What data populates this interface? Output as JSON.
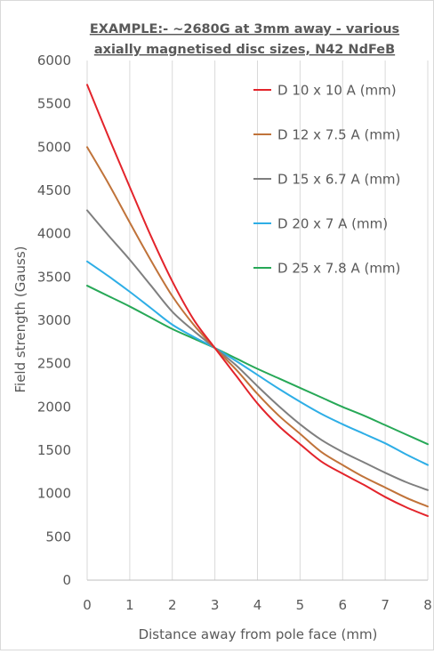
{
  "chart_data": {
    "type": "line",
    "title_line1": "EXAMPLE:- ~2680G at 3mm away - various",
    "title_line2": "axially magnetised disc sizes, N42 NdFeB",
    "xlabel": "Distance away from pole face (mm)",
    "ylabel": "Field strength (Gauss)",
    "xlim": [
      0,
      8
    ],
    "ylim": [
      0,
      6000
    ],
    "x_ticks": [
      0,
      1,
      2,
      3,
      4,
      5,
      6,
      7,
      8
    ],
    "y_ticks": [
      0,
      500,
      1000,
      1500,
      2000,
      2500,
      3000,
      3500,
      4000,
      4500,
      5000,
      5500,
      6000
    ],
    "grid": "vertical",
    "legend_position": "top-right",
    "x": [
      0,
      0.5,
      1,
      1.5,
      2,
      2.5,
      3,
      3.5,
      4,
      4.5,
      5,
      5.5,
      6,
      6.5,
      7,
      7.5,
      8
    ],
    "series": [
      {
        "name": "D 10 x 10 A (mm)",
        "color": "#e3242b",
        "values": [
          5720,
          5120,
          4540,
          3970,
          3450,
          3010,
          2680,
          2360,
          2040,
          1780,
          1570,
          1370,
          1230,
          1100,
          960,
          840,
          740
        ]
      },
      {
        "name": "D 12 x 7.5 A (mm)",
        "color": "#c0733a",
        "values": [
          5000,
          4580,
          4130,
          3690,
          3280,
          2950,
          2680,
          2430,
          2150,
          1900,
          1690,
          1480,
          1330,
          1190,
          1070,
          950,
          850
        ]
      },
      {
        "name": "D 15 x 6.7 A (mm)",
        "color": "#7f7f7f",
        "values": [
          4270,
          3980,
          3700,
          3400,
          3100,
          2880,
          2680,
          2480,
          2240,
          2010,
          1800,
          1620,
          1480,
          1360,
          1240,
          1130,
          1040
        ]
      },
      {
        "name": "D 20 x 7 A (mm)",
        "color": "#2eaee6",
        "values": [
          3680,
          3510,
          3330,
          3140,
          2950,
          2810,
          2680,
          2530,
          2370,
          2210,
          2060,
          1920,
          1800,
          1690,
          1580,
          1450,
          1330
        ]
      },
      {
        "name": "D 25 x 7.8 A (mm)",
        "color": "#27a857",
        "values": [
          3400,
          3280,
          3160,
          3030,
          2900,
          2790,
          2680,
          2560,
          2440,
          2330,
          2220,
          2110,
          2000,
          1900,
          1790,
          1680,
          1570
        ]
      }
    ]
  }
}
